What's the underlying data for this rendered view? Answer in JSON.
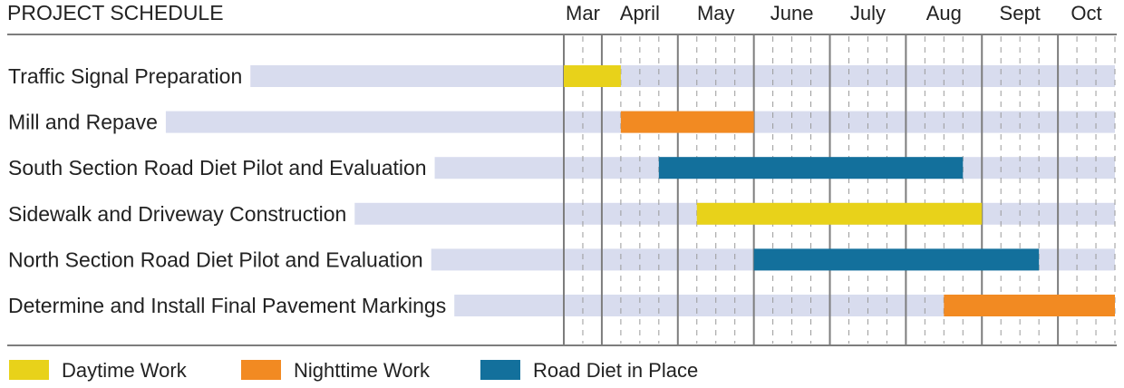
{
  "chart_data": {
    "type": "gantt",
    "title": "PROJECT SCHEDULE",
    "months": [
      "Mar",
      "April",
      "May",
      "June",
      "July",
      "Aug",
      "Sept",
      "Oct"
    ],
    "timeline_range_weeks": [
      0,
      29
    ],
    "month_start_weeks": [
      0,
      2,
      6,
      10,
      14,
      18,
      22,
      26
    ],
    "tasks": [
      {
        "name": "Traffic Signal Preparation",
        "start_week": 0,
        "end_week": 3,
        "category": "daytime"
      },
      {
        "name": "Mill and Repave",
        "start_week": 3,
        "end_week": 10,
        "category": "nighttime"
      },
      {
        "name": "South Section Road Diet Pilot and Evaluation",
        "start_week": 5,
        "end_week": 21,
        "category": "road_diet"
      },
      {
        "name": "Sidewalk and Driveway Construction",
        "start_week": 7,
        "end_week": 22,
        "category": "daytime"
      },
      {
        "name": "North Section Road Diet Pilot and Evaluation",
        "start_week": 10,
        "end_week": 25,
        "category": "road_diet"
      },
      {
        "name": "Determine and Install Final Pavement Markings",
        "start_week": 20,
        "end_week": 29,
        "category": "nighttime"
      }
    ],
    "legend": [
      {
        "key": "daytime",
        "label": "Daytime Work",
        "color": "#e8d21a"
      },
      {
        "key": "nighttime",
        "label": "Nighttime Work",
        "color": "#f28a22"
      },
      {
        "key": "road_diet",
        "label": "Road Diet in Place",
        "color": "#13709c"
      }
    ],
    "legend_position": "bottom",
    "track_color": "#d8dcee",
    "grid": true
  }
}
